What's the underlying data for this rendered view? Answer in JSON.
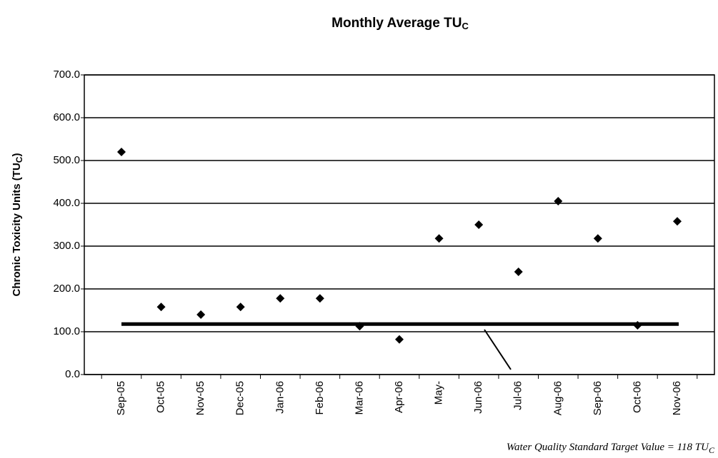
{
  "chart_data": {
    "type": "scatter",
    "title": [
      "Monthly Average TU",
      "C"
    ],
    "ylabel": [
      "Chronic Toxicity Units (TU",
      "C",
      ")"
    ],
    "categories": [
      "Sep-05",
      "Oct-05",
      "Nov-05",
      "Dec-05",
      "Jan-06",
      "Feb-06",
      "Mar-06",
      "Apr-06",
      "May-",
      "Jun-06",
      "Jul-06",
      "Aug-06",
      "Sep-06",
      "Oct-06",
      "Nov-06"
    ],
    "values": [
      520,
      158,
      140,
      158,
      178,
      178,
      113,
      82,
      318,
      350,
      240,
      405,
      318,
      115,
      358
    ],
    "color": "#000000",
    "target": 118,
    "annotation": [
      "Water Quality Standard Target Value = 118 TU",
      "C"
    ],
    "ylim": [
      0,
      700
    ],
    "yticks": [
      {
        "value": 0,
        "label": "0.0"
      },
      {
        "value": 100,
        "label": "100.0"
      },
      {
        "value": 200,
        "label": "200.0"
      },
      {
        "value": 300,
        "label": "300.0"
      },
      {
        "value": 400,
        "label": "400.0"
      },
      {
        "value": 500,
        "label": "500.0"
      },
      {
        "value": 600,
        "label": "600.0"
      },
      {
        "value": 700,
        "label": "700.0"
      }
    ],
    "grid": true
  }
}
